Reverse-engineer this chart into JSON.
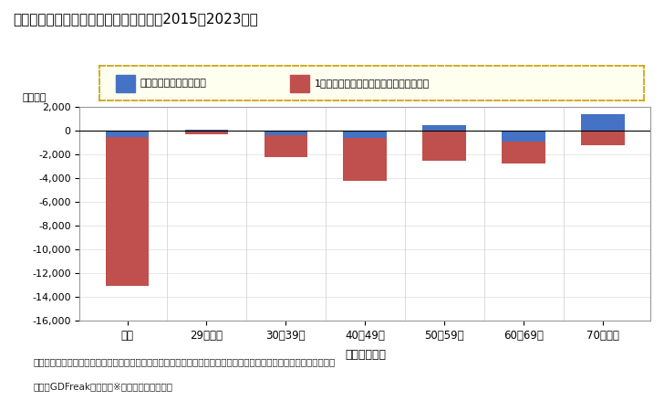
{
  "title": "二人以上世帯の消費支出額の変動要因（2015～2023年）",
  "categories": [
    "全体",
    "29歳以下",
    "30～39歳",
    "40～49歳",
    "50～59歳",
    "60～69歳",
    "70歳以上"
  ],
  "xlabel": "二人以上世帯",
  "ylabel": "（億円）",
  "blue_values": [
    -500,
    100,
    -350,
    -600,
    500,
    -900,
    1400
  ],
  "red_values": [
    -13100,
    -300,
    -2200,
    -4200,
    -2500,
    -2800,
    -1200
  ],
  "blue_color": "#4472C4",
  "red_color": "#C0504D",
  "ylim": [
    -16000,
    2000
  ],
  "yticks": [
    -16000,
    -14000,
    -12000,
    -10000,
    -8000,
    -6000,
    -4000,
    -2000,
    0,
    2000
  ],
  "legend_blue": "世帯数の変化による影響",
  "legend_red": "1世帯当たり消費支出額の変化による影響",
  "source_line1": "出所：『家計調査』（総務省）及び『日本の世帯数の将来推計（全国推計）』（国立社会保障・人口問題研究所）から",
  "source_line2": "　　　GDFreak推計　　※年齢は世帯主年齢。",
  "legend_box_color": "#FFFFF0",
  "legend_border_color": "#C8A000",
  "background_color": "#FFFFFF",
  "plot_bg_color": "#FFFFFF"
}
